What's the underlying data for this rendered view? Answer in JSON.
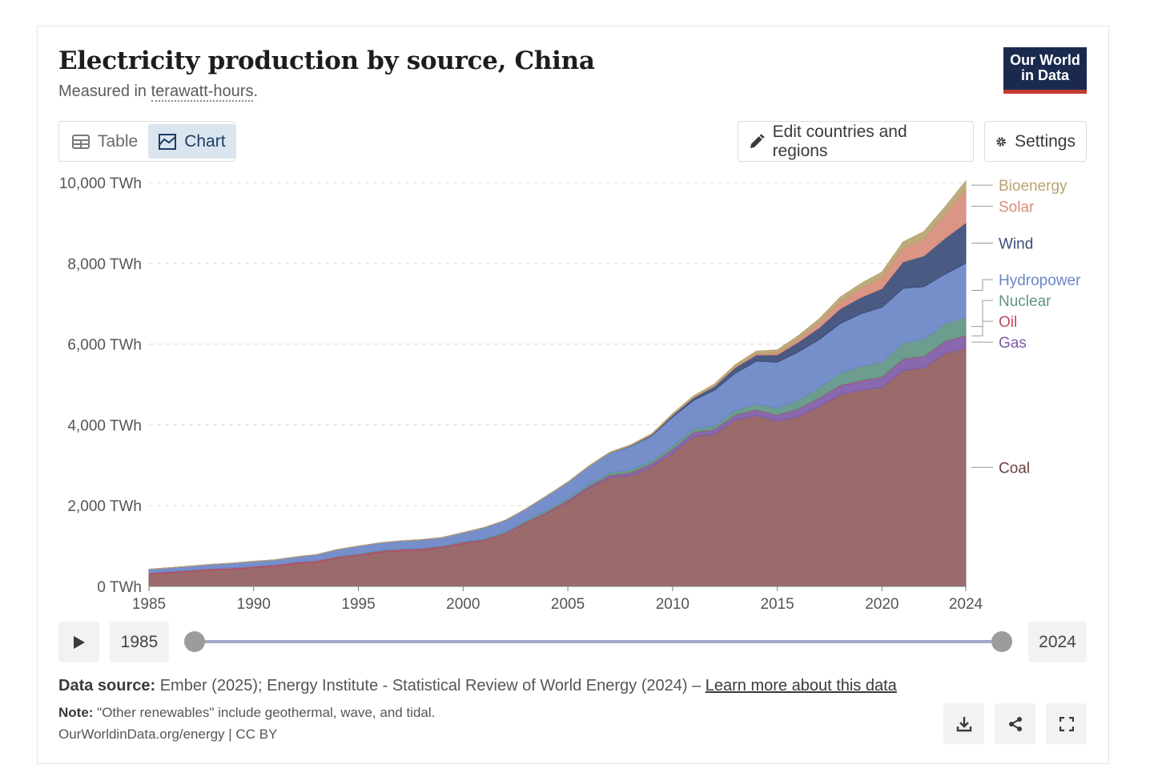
{
  "header": {
    "title": "Electricity production by source, China",
    "subtitle_prefix": "Measured in ",
    "subtitle_unit": "terawatt-hours",
    "subtitle_suffix": ".",
    "logo_line1": "Our World",
    "logo_line2": "in Data"
  },
  "tabs": [
    {
      "label": "Table",
      "icon": "table-icon",
      "active": false
    },
    {
      "label": "Chart",
      "icon": "chart-icon",
      "active": true
    }
  ],
  "toolbar": {
    "edit_label": "Edit countries and regions",
    "settings_label": "Settings"
  },
  "timeline": {
    "start_label": "1985",
    "end_label": "2024"
  },
  "footer": {
    "source_label": "Data source:",
    "source_text": " Ember (2025); Energy Institute - Statistical Review of World Energy (2024) – ",
    "source_link": "Learn more about this data",
    "note_label": "Note:",
    "note_text": " \"Other renewables\" include geothermal, wave, and tidal.",
    "credit": "OurWorldinData.org/energy | CC BY"
  },
  "colors": {
    "Coal": "#925e5f",
    "Gas": "#7e5ba8",
    "Oil": "#c0485e",
    "Nuclear": "#5f9585",
    "Hydropower": "#6a86c7",
    "Wind": "#3c4c77",
    "Solar": "#d88c79",
    "Bioenergy": "#b9a371"
  },
  "chart_data": {
    "type": "area",
    "stacked": true,
    "title": "Electricity production by source, China",
    "ylabel": "",
    "ylim": [
      0,
      10000
    ],
    "yticks": [
      0,
      2000,
      4000,
      6000,
      8000,
      10000
    ],
    "ytick_labels": [
      "0 TWh",
      "2,000 TWh",
      "4,000 TWh",
      "6,000 TWh",
      "8,000 TWh",
      "10,000 TWh"
    ],
    "xticks": [
      1985,
      1990,
      1995,
      2000,
      2005,
      2010,
      2015,
      2020,
      2024
    ],
    "grid": "horizontal dashed",
    "legend": "right, inline labels",
    "x": [
      1985,
      1986,
      1987,
      1988,
      1989,
      1990,
      1991,
      1992,
      1993,
      1994,
      1995,
      1996,
      1997,
      1998,
      1999,
      2000,
      2001,
      2002,
      2003,
      2004,
      2005,
      2006,
      2007,
      2008,
      2009,
      2010,
      2011,
      2012,
      2013,
      2014,
      2015,
      2016,
      2017,
      2018,
      2019,
      2020,
      2021,
      2022,
      2023,
      2024
    ],
    "series": [
      {
        "name": "Coal",
        "values": [
          300,
          335,
          370,
          405,
          425,
          460,
          500,
          565,
          600,
          700,
          760,
          840,
          880,
          900,
          960,
          1060,
          1130,
          1290,
          1560,
          1810,
          2090,
          2430,
          2690,
          2740,
          2950,
          3300,
          3700,
          3770,
          4120,
          4230,
          4090,
          4200,
          4450,
          4750,
          4860,
          4930,
          5350,
          5410,
          5770,
          5900
        ]
      },
      {
        "name": "Gas",
        "values": [
          2,
          2,
          2,
          2,
          2,
          3,
          3,
          3,
          4,
          4,
          4,
          5,
          5,
          6,
          6,
          7,
          8,
          9,
          10,
          12,
          20,
          35,
          50,
          65,
          80,
          90,
          110,
          110,
          120,
          140,
          150,
          190,
          210,
          220,
          230,
          250,
          270,
          280,
          290,
          300
        ]
      },
      {
        "name": "Oil",
        "values": [
          30,
          30,
          30,
          30,
          30,
          30,
          30,
          30,
          30,
          30,
          30,
          30,
          30,
          28,
          25,
          25,
          22,
          20,
          20,
          20,
          18,
          15,
          15,
          14,
          12,
          12,
          10,
          10,
          10,
          10,
          10,
          10,
          10,
          12,
          12,
          12,
          12,
          12,
          12,
          12
        ]
      },
      {
        "name": "Nuclear",
        "values": [
          0,
          0,
          0,
          0,
          0,
          0,
          0,
          0,
          2,
          13,
          13,
          14,
          14,
          14,
          15,
          17,
          18,
          25,
          43,
          50,
          53,
          55,
          62,
          68,
          70,
          74,
          86,
          98,
          112,
          133,
          171,
          213,
          248,
          295,
          348,
          366,
          408,
          418,
          435,
          450
        ]
      },
      {
        "name": "Hydropower",
        "values": [
          92,
          94,
          100,
          109,
          118,
          126,
          125,
          132,
          151,
          167,
          190,
          188,
          196,
          208,
          204,
          222,
          277,
          288,
          284,
          353,
          397,
          436,
          485,
          585,
          616,
          722,
          699,
          872,
          920,
          1064,
          1130,
          1193,
          1194,
          1232,
          1302,
          1355,
          1340,
          1303,
          1226,
          1340
        ]
      },
      {
        "name": "Wind",
        "values": [
          0,
          0,
          0,
          0,
          0,
          0,
          0,
          0,
          0,
          0,
          0,
          0,
          0,
          0,
          0,
          1,
          1,
          1,
          1,
          1,
          2,
          4,
          6,
          15,
          27,
          45,
          70,
          96,
          141,
          156,
          186,
          241,
          295,
          366,
          406,
          467,
          656,
          763,
          886,
          1000
        ]
      },
      {
        "name": "Solar",
        "values": [
          0,
          0,
          0,
          0,
          0,
          0,
          0,
          0,
          0,
          0,
          0,
          0,
          0,
          0,
          0,
          0,
          0,
          0,
          0,
          0,
          0,
          0,
          0,
          0,
          0,
          1,
          3,
          6,
          15,
          29,
          45,
          75,
          118,
          177,
          225,
          261,
          327,
          428,
          584,
          830
        ]
      },
      {
        "name": "Bioenergy",
        "values": [
          0,
          0,
          0,
          0,
          0,
          0,
          0,
          0,
          0,
          0,
          0,
          0,
          0,
          0,
          0,
          2,
          2,
          2,
          2,
          3,
          5,
          10,
          15,
          20,
          25,
          35,
          40,
          50,
          55,
          65,
          75,
          85,
          100,
          110,
          120,
          145,
          165,
          175,
          190,
          210
        ]
      }
    ]
  }
}
